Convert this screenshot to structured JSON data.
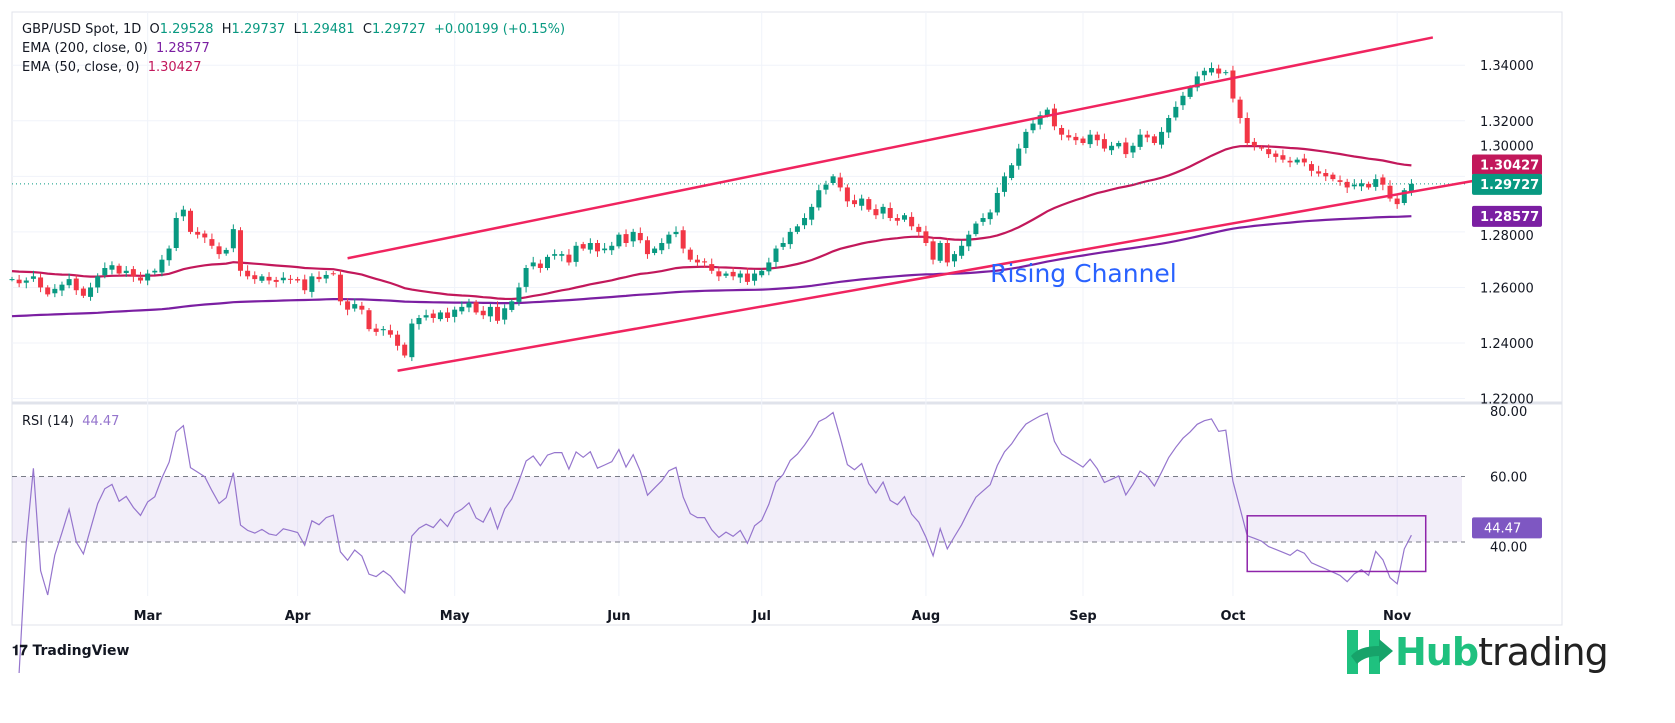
{
  "header": {
    "symbol": "GBP/USD Spot, 1D",
    "open_label": "O",
    "open": "1.29528",
    "high_label": "H",
    "high": "1.29737",
    "low_label": "L",
    "low": "1.29481",
    "close_label": "C",
    "close": "1.29727",
    "change": "+0.00199 (+0.15%)",
    "ema200_label": "EMA (200, close, 0)",
    "ema200_value": "1.28577",
    "ema50_label": "EMA (50, close, 0)",
    "ema50_value": "1.30427"
  },
  "rsi": {
    "label": "RSI (14)",
    "value": "44.47"
  },
  "branding": {
    "tradingview": "TradingView",
    "hub_a": "Hub",
    "hub_b": "trading"
  },
  "colors": {
    "up": "#089981",
    "down": "#f23645",
    "ema50": "#c2185b",
    "ema200": "#7b1fa2",
    "channel": "#f0245f",
    "rsi": "#9575cd",
    "annotation_text": "#2962ff"
  },
  "chart_data": {
    "type": "candlestick",
    "start_date": "2024-02-05",
    "closes": [
      1.263,
      1.2615,
      1.2625,
      1.264,
      1.26,
      1.2575,
      1.2595,
      1.261,
      1.263,
      1.259,
      1.257,
      1.26,
      1.264,
      1.267,
      1.268,
      1.265,
      1.266,
      1.264,
      1.2625,
      1.265,
      1.266,
      1.27,
      1.274,
      1.285,
      1.288,
      1.28,
      1.279,
      1.278,
      1.275,
      1.272,
      1.2735,
      1.281,
      1.266,
      1.264,
      1.263,
      1.264,
      1.2625,
      1.262,
      1.2635,
      1.263,
      1.2625,
      1.259,
      1.264,
      1.263,
      1.2645,
      1.265,
      1.255,
      1.252,
      1.254,
      1.252,
      1.245,
      1.244,
      1.245,
      1.243,
      1.239,
      1.2355,
      1.247,
      1.249,
      1.25,
      1.249,
      1.251,
      1.249,
      1.252,
      1.253,
      1.2545,
      1.251,
      1.25,
      1.253,
      1.248,
      1.2525,
      1.255,
      1.26,
      1.267,
      1.269,
      1.267,
      1.271,
      1.272,
      1.272,
      1.269,
      1.275,
      1.274,
      1.276,
      1.273,
      1.274,
      1.275,
      1.279,
      1.276,
      1.28,
      1.277,
      1.272,
      1.274,
      1.276,
      1.279,
      1.28,
      1.274,
      1.27,
      1.269,
      1.269,
      1.266,
      1.264,
      1.265,
      1.264,
      1.265,
      1.262,
      1.265,
      1.266,
      1.269,
      1.274,
      1.276,
      1.28,
      1.282,
      1.285,
      1.289,
      1.295,
      1.297,
      1.3,
      1.296,
      1.291,
      1.29,
      1.292,
      1.288,
      1.286,
      1.289,
      1.285,
      1.284,
      1.286,
      1.282,
      1.28,
      1.276,
      1.27,
      1.276,
      1.269,
      1.272,
      1.275,
      1.279,
      1.283,
      1.285,
      1.287,
      1.294,
      1.3,
      1.304,
      1.31,
      1.316,
      1.319,
      1.322,
      1.324,
      1.318,
      1.315,
      1.314,
      1.313,
      1.312,
      1.315,
      1.313,
      1.31,
      1.311,
      1.312,
      1.308,
      1.311,
      1.315,
      1.314,
      1.312,
      1.316,
      1.321,
      1.325,
      1.329,
      1.332,
      1.336,
      1.338,
      1.339,
      1.337,
      1.3375,
      1.328,
      1.321,
      1.312,
      1.311,
      1.31,
      1.308,
      1.307,
      1.306,
      1.305,
      1.306,
      1.305,
      1.302,
      1.301,
      1.3,
      1.299,
      1.298,
      1.296,
      1.297,
      1.2975,
      1.296,
      1.299,
      1.297,
      1.292,
      1.29,
      1.295,
      1.2973
    ],
    "x_ticks": [
      "Mar",
      "Apr",
      "May",
      "Jun",
      "Jul",
      "Aug",
      "Sep",
      "Oct",
      "Nov"
    ],
    "y_ticks": [
      "1.34000",
      "1.32000",
      "1.30000",
      "1.28000",
      "1.26000",
      "1.24000",
      "1.22000"
    ],
    "ylim": [
      1.218,
      1.35
    ],
    "price_tags": [
      {
        "value": "1.30427",
        "series": "ema50"
      },
      {
        "value": "1.29727",
        "series": "last"
      },
      {
        "value": "1.28577",
        "series": "ema200"
      }
    ],
    "channel": {
      "upper": [
        {
          "date": "2024-04-10",
          "price": 1.2705
        },
        {
          "date": "2024-11-08",
          "price": 1.35
        }
      ],
      "lower": [
        {
          "date": "2024-04-19",
          "price": 1.23
        },
        {
          "date": "2024-11-18",
          "price": 1.2985
        }
      ]
    },
    "annotation": {
      "text": "Rising Channel",
      "date": "2024-08-14",
      "price": 1.262
    },
    "rsi_ticks": [
      "80.00",
      "60.00",
      "40.00"
    ],
    "rsi_ylim": [
      20,
      85
    ],
    "rsi_band": [
      40,
      60
    ],
    "rsi_box": {
      "from": "2024-10-03",
      "to": "2024-11-07",
      "low": 31,
      "high": 48
    }
  }
}
